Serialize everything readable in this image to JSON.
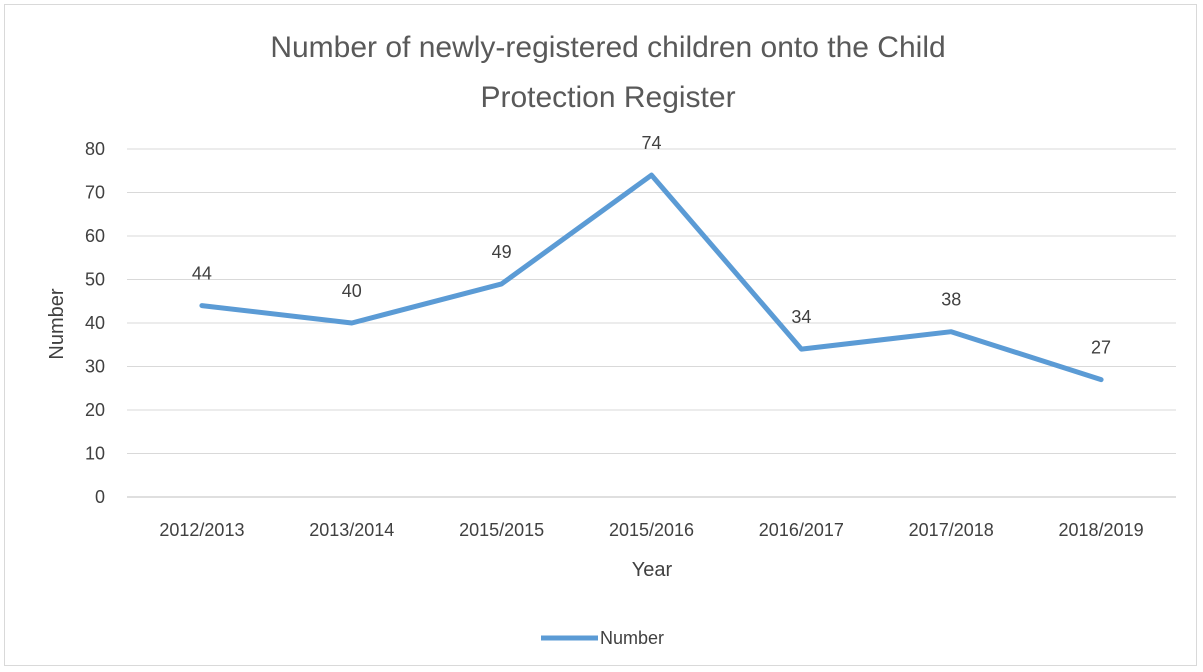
{
  "chart_data": {
    "type": "line",
    "title_lines": [
      "Number of newly-registered children onto the Child",
      "Protection Register"
    ],
    "xlabel": "Year",
    "ylabel": "Number",
    "categories": [
      "2012/2013",
      "2013/2014",
      "2015/2015",
      "2015/2016",
      "2016/2017",
      "2017/2018",
      "2018/2019"
    ],
    "series": [
      {
        "name": "Number",
        "values": [
          44,
          40,
          49,
          74,
          34,
          38,
          27
        ],
        "color": "#5b9bd5"
      }
    ],
    "ylim": [
      0,
      80
    ],
    "yticks": [
      0,
      10,
      20,
      30,
      40,
      50,
      60,
      70,
      80
    ],
    "grid": true,
    "legend": "bottom",
    "data_labels": true
  }
}
